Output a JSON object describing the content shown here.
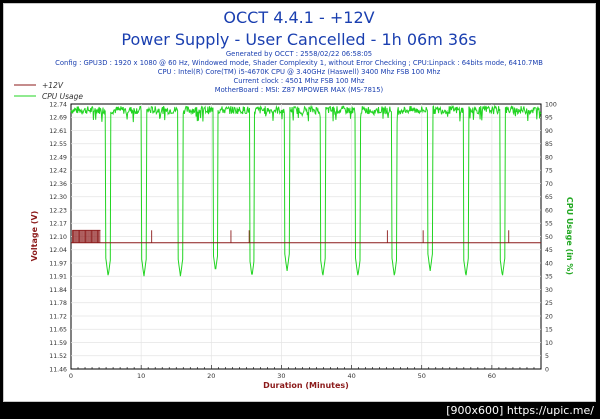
{
  "header": {
    "title": "OCCT 4.4.1 - +12V",
    "subtitle": "Power Supply - User Cancelled - 1h 06m 36s",
    "info_lines": [
      "Generated by OCCT : 2558/02/22 06:58:05",
      "Config : GPU3D : 1920 x 1080 @ 60 Hz, Windowed mode, Shader Complexity 1, without Error Checking ; CPU:Linpack : 64bits mode, 6410.7MB",
      "CPU : Intel(R) Core(TM) i5-4670K CPU @ 3.40GHz (Haswell) 3400 Mhz FSB 100 Mhz",
      "Current clock : 4501 Mhz FSB 100 Mhz",
      "MotherBoard : MSI: Z87 MPOWER MAX (MS-7815)"
    ]
  },
  "watermark": "[900x600] https://upic.me/",
  "colors": {
    "voltage": "#8b1a1a",
    "cpu": "#22d422",
    "title": "#1a3fb0",
    "frame": "#000000"
  },
  "chart_data": {
    "type": "line",
    "xlabel": "Duration (Minutes)",
    "ylabel": "Voltage (V)",
    "y2label": "CPU Usage (in %)",
    "xlim": [
      0,
      67
    ],
    "ylim": [
      11.46,
      12.74
    ],
    "y2lim": [
      0,
      100
    ],
    "x_ticks": [
      "0",
      "10",
      "20",
      "30",
      "40",
      "50",
      "60"
    ],
    "x_tick_values": [
      0,
      10,
      20,
      30,
      40,
      50,
      60
    ],
    "y_ticks": [
      "12.74",
      "12.69",
      "12.61",
      "12.55",
      "12.49",
      "12.42",
      "12.36",
      "12.30",
      "12.23",
      "12.17",
      "12.10",
      "12.04",
      "11.97",
      "11.91",
      "11.84",
      "11.78",
      "11.72",
      "11.65",
      "11.59",
      "11.52",
      "11.46"
    ],
    "y2_ticks": [
      "100",
      "95",
      "90",
      "85",
      "80",
      "75",
      "70",
      "65",
      "60",
      "55",
      "50",
      "45",
      "40",
      "35",
      "30",
      "25",
      "20",
      "15",
      "10",
      "5",
      "0"
    ],
    "legend_position": "top-left",
    "grid": true,
    "series": [
      {
        "name": "+12V",
        "axis": "left",
        "baseline": 12.07,
        "spike_value": 12.13,
        "spike_cluster_range": [
          0.2,
          4.2
        ],
        "isolated_spikes": [
          11.5,
          22.8,
          25.4,
          45.1,
          50.2,
          62.4
        ]
      },
      {
        "name": "CPU Usage",
        "axis": "right",
        "plateau": 98,
        "plateau_noise": [
          93,
          100
        ],
        "dips": [
          {
            "x": 5.3,
            "value": 35
          },
          {
            "x": 10.4,
            "value": 35
          },
          {
            "x": 15.6,
            "value": 35
          },
          {
            "x": 20.6,
            "value": 37
          },
          {
            "x": 25.8,
            "value": 35
          },
          {
            "x": 30.8,
            "value": 37
          },
          {
            "x": 35.9,
            "value": 35
          },
          {
            "x": 40.9,
            "value": 35
          },
          {
            "x": 46.1,
            "value": 35
          },
          {
            "x": 51.2,
            "value": 37
          },
          {
            "x": 56.3,
            "value": 35
          },
          {
            "x": 61.5,
            "value": 35
          }
        ]
      }
    ]
  }
}
